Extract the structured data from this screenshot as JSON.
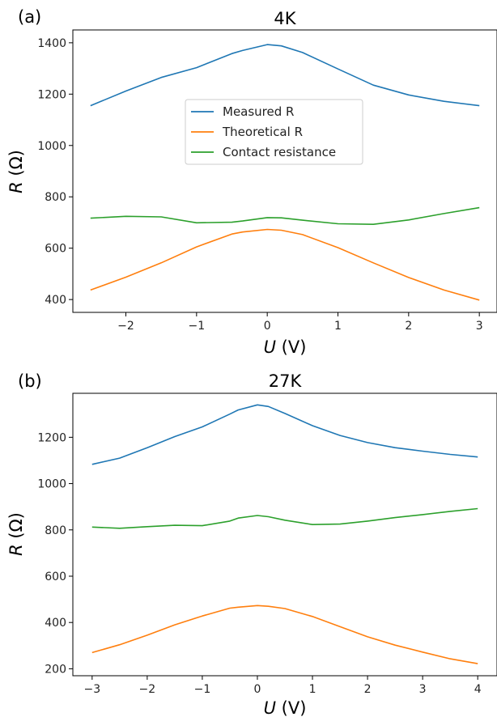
{
  "chart_data": [
    {
      "type": "line",
      "panel_label": "(a)",
      "title": "4K",
      "xlabel_var": "U",
      "xlabel_unit": " (V)",
      "ylabel_var": "R",
      "ylabel_unit": " (Ω)",
      "xlim": [
        -2.75,
        3.25
      ],
      "ylim": [
        350,
        1450
      ],
      "xticks": [
        -2,
        -1,
        0,
        1,
        2,
        3
      ],
      "yticks": [
        400,
        600,
        800,
        1000,
        1200,
        1400
      ],
      "grid": false,
      "legend": {
        "show": true,
        "placement": "center"
      },
      "series": [
        {
          "name": "Measured R",
          "color": "#1f77b4",
          "x": [
            -2.5,
            -2,
            -1.5,
            -1,
            -0.5,
            -0.35,
            0,
            0.2,
            0.5,
            1,
            1.5,
            2,
            2.5,
            3
          ],
          "y": [
            1155,
            1212,
            1265,
            1303,
            1358,
            1370,
            1393,
            1388,
            1362,
            1298,
            1235,
            1197,
            1172,
            1155
          ]
        },
        {
          "name": "Theoretical R",
          "color": "#ff7f0e",
          "x": [
            -2.5,
            -2,
            -1.5,
            -1,
            -0.5,
            -0.35,
            0,
            0.2,
            0.5,
            1,
            1.5,
            2,
            2.5,
            3
          ],
          "y": [
            437,
            487,
            543,
            605,
            655,
            663,
            673,
            670,
            653,
            602,
            543,
            486,
            437,
            398
          ]
        },
        {
          "name": "Contact resistance",
          "color": "#2ca02c",
          "x": [
            -2.5,
            -2,
            -1.5,
            -1,
            -0.5,
            -0.35,
            0,
            0.2,
            0.5,
            1,
            1.5,
            2,
            2.5,
            3
          ],
          "y": [
            717,
            724,
            722,
            699,
            701,
            706,
            719,
            718,
            709,
            695,
            693,
            710,
            735,
            758
          ]
        }
      ]
    },
    {
      "type": "line",
      "panel_label": "(b)",
      "title": "27K",
      "xlabel_var": "U",
      "xlabel_unit": " (V)",
      "ylabel_var": "R",
      "ylabel_unit": " (Ω)",
      "xlim": [
        -3.35,
        4.35
      ],
      "ylim": [
        170,
        1390
      ],
      "xticks": [
        -3,
        -2,
        -1,
        0,
        1,
        2,
        3,
        4
      ],
      "yticks": [
        200,
        400,
        600,
        800,
        1000,
        1200
      ],
      "grid": false,
      "legend": {
        "show": false
      },
      "series": [
        {
          "name": "Measured R",
          "color": "#1f77b4",
          "x": [
            -3,
            -2.5,
            -2,
            -1.5,
            -1,
            -0.5,
            -0.35,
            0,
            0.2,
            0.5,
            1,
            1.5,
            2,
            2.5,
            3,
            3.5,
            4
          ],
          "y": [
            1083,
            1110,
            1155,
            1203,
            1245,
            1300,
            1318,
            1340,
            1333,
            1303,
            1250,
            1208,
            1177,
            1155,
            1140,
            1126,
            1115
          ]
        },
        {
          "name": "Theoretical R",
          "color": "#ff7f0e",
          "x": [
            -3,
            -2.5,
            -2,
            -1.5,
            -1,
            -0.5,
            -0.35,
            0,
            0.2,
            0.5,
            1,
            1.5,
            2,
            2.5,
            3,
            3.5,
            4
          ],
          "y": [
            270,
            304,
            345,
            390,
            428,
            462,
            466,
            473,
            470,
            460,
            426,
            382,
            338,
            302,
            272,
            243,
            222
          ]
        },
        {
          "name": "Contact resistance",
          "color": "#2ca02c",
          "x": [
            -3,
            -2.5,
            -2,
            -1.5,
            -1,
            -0.5,
            -0.35,
            0,
            0.2,
            0.5,
            1,
            1.5,
            2,
            2.5,
            3,
            3.5,
            4
          ],
          "y": [
            812,
            807,
            814,
            820,
            818,
            838,
            851,
            862,
            857,
            842,
            823,
            825,
            838,
            853,
            866,
            880,
            892
          ]
        }
      ]
    }
  ]
}
